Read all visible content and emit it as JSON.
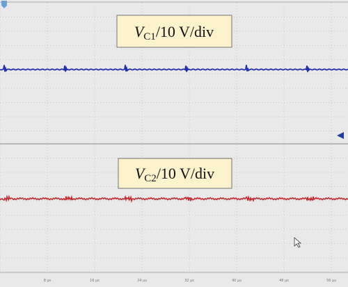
{
  "panels": [
    {
      "label": {
        "symbol": "V",
        "subscript": "C1",
        "scale": "/10 V/div"
      }
    },
    {
      "label": {
        "symbol": "V",
        "subscript": "C2",
        "scale": "/10 V/div"
      }
    }
  ],
  "time_axis": {
    "ticks": [
      "8 µs",
      "16 µs",
      "24 µs",
      "32 µs",
      "40 µs",
      "48 µs",
      "56 µs"
    ]
  }
}
